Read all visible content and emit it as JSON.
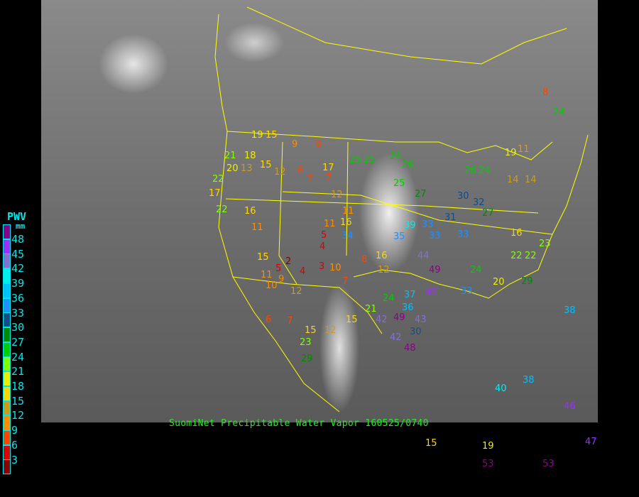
{
  "title": "SuomiNet Precipitable Water Vapor 160525/0740",
  "legend": {
    "title": "PWV",
    "unit": "mm",
    "labels": [
      "48",
      "45",
      "42",
      "39",
      "36",
      "33",
      "30",
      "27",
      "24",
      "21",
      "18",
      "15",
      "12",
      "9",
      "6",
      "3"
    ],
    "colors": [
      "#8b008b",
      "#9b30ff",
      "#8470d0",
      "#00eeee",
      "#00bfff",
      "#1e90ff",
      "#104e8b",
      "#008b00",
      "#00cd00",
      "#7fff00",
      "#eeee00",
      "#ffd700",
      "#cd9b1d",
      "#ff8c00",
      "#ff4500",
      "#dd0000",
      "#8b0000"
    ]
  },
  "stations": [
    "19",
    "15",
    "9",
    "8",
    "21",
    "18",
    "15",
    "12",
    "20",
    "13",
    "6",
    "17",
    "7",
    "7",
    "12",
    "25",
    "25",
    "26",
    "26",
    "25",
    "27",
    "26",
    "24",
    "14",
    "14",
    "19",
    "11",
    "22",
    "17",
    "22",
    "16",
    "11",
    "11",
    "16",
    "11",
    "5",
    "34",
    "4",
    "15",
    "2",
    "5",
    "4",
    "3",
    "10",
    "11",
    "9",
    "10",
    "12",
    "7",
    "8",
    "16",
    "12",
    "39",
    "33",
    "33",
    "35",
    "44",
    "49",
    "31",
    "33",
    "32",
    "30",
    "27",
    "16",
    "22",
    "22",
    "23",
    "29",
    "20",
    "24",
    "33",
    "36",
    "45",
    "37",
    "24",
    "21",
    "42",
    "49",
    "43",
    "30",
    "42",
    "48",
    "15",
    "12",
    "15",
    "7",
    "6",
    "23",
    "29",
    "40",
    "38",
    "46",
    "47",
    "15",
    "19",
    "53",
    "53",
    "38",
    "24",
    "8"
  ]
}
